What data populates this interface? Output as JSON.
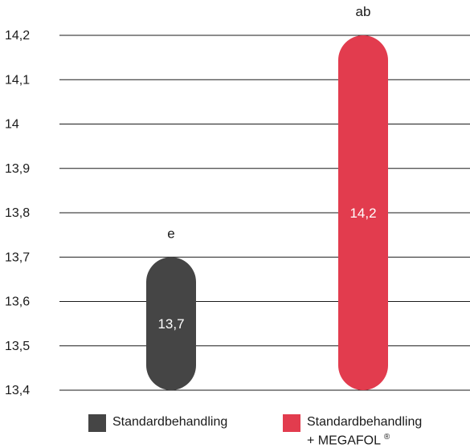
{
  "chart_data": {
    "type": "bar",
    "categories": [
      "Standardbehandling",
      "Standardbehandling + MEGAFOL ®"
    ],
    "series": [
      {
        "values": [
          13.7,
          14.2
        ]
      }
    ],
    "data_labels": [
      "13,7",
      "14,2"
    ],
    "significance_letters": [
      "e",
      "ab"
    ],
    "colors": [
      "#454545",
      "#e23c4e"
    ],
    "ylim": [
      13.4,
      14.2
    ],
    "yticks": [
      13.4,
      13.5,
      13.6,
      13.7,
      13.8,
      13.9,
      14.0,
      14.1,
      14.2
    ],
    "ytick_labels": [
      "13,4",
      "13,5",
      "13,6",
      "13,7",
      "13,8",
      "13,9",
      "14",
      "14,1",
      "14,2"
    ],
    "grid": true,
    "legend_position": "bottom",
    "title": "",
    "xlabel": "",
    "ylabel": ""
  },
  "legend": {
    "items": [
      {
        "line1": "Standardbehandling",
        "line2": "",
        "sup": ""
      },
      {
        "line1": "Standardbehandling",
        "line2": "+ MEGAFOL",
        "sup": "®"
      }
    ]
  }
}
